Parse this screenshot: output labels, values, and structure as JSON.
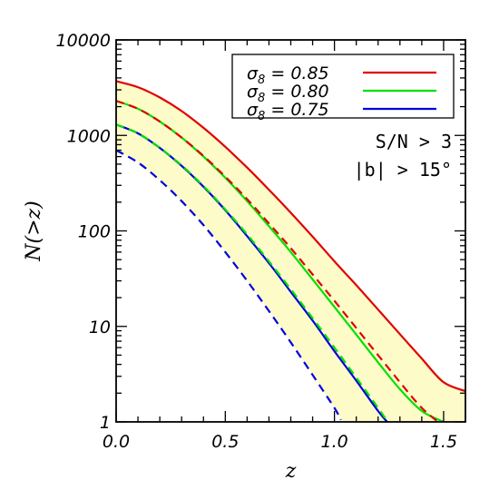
{
  "chart_data": {
    "type": "line",
    "xlabel": "z",
    "ylabel": "N(>z)",
    "xlim": [
      0.0,
      1.6
    ],
    "ylim": [
      1,
      10000
    ],
    "yscale": "log",
    "x_ticks": [
      "0.0",
      "0.5",
      "1.0",
      "1.5"
    ],
    "y_ticks": [
      "1",
      "10",
      "100",
      "1000",
      "10000"
    ],
    "legend_position": "top-right",
    "annotations": [
      "S/N > 3",
      "|b| > 15°"
    ],
    "series": [
      {
        "legend_symbol": "σ",
        "legend_subscript": "8",
        "legend_value": " = 0.85",
        "color": "#e00000",
        "style": "solid",
        "x": [
          0.0,
          0.1,
          0.2,
          0.3,
          0.4,
          0.5,
          0.6,
          0.7,
          0.8,
          0.9,
          1.0,
          1.1,
          1.2,
          1.3,
          1.4,
          1.5,
          1.6
        ],
        "y": [
          3700,
          3200,
          2500,
          1800,
          1200,
          760,
          460,
          270,
          155,
          87,
          48,
          27,
          15,
          8.3,
          4.6,
          2.6,
          2.1
        ]
      },
      {
        "legend_symbol": "σ",
        "legend_subscript": "8",
        "legend_value": " = 0.80",
        "color": "#00e000",
        "style": "solid",
        "x": [
          0.0,
          0.1,
          0.2,
          0.3,
          0.4,
          0.5,
          0.6,
          0.7,
          0.8,
          0.9,
          1.0,
          1.1,
          1.2,
          1.3,
          1.4,
          1.5,
          1.55
        ],
        "y": [
          2300,
          1900,
          1400,
          950,
          600,
          360,
          205,
          112,
          60,
          31,
          16,
          8.2,
          4.2,
          2.2,
          1.3,
          1.0,
          0.9
        ]
      },
      {
        "legend_symbol": "σ",
        "legend_subscript": "8",
        "legend_value": " = 0.75",
        "color": "#0000e0",
        "style": "solid",
        "x": [
          0.0,
          0.1,
          0.2,
          0.3,
          0.4,
          0.5,
          0.6,
          0.7,
          0.8,
          0.9,
          1.0,
          1.1,
          1.2,
          1.25
        ],
        "y": [
          1300,
          1050,
          740,
          480,
          290,
          165,
          88,
          46,
          23,
          11.5,
          5.5,
          2.7,
          1.3,
          0.95
        ]
      },
      {
        "color": "#e00000",
        "style": "dashed",
        "x": [
          0.0,
          0.1,
          0.2,
          0.3,
          0.4,
          0.5,
          0.6,
          0.7,
          0.8,
          0.9,
          1.0,
          1.1,
          1.2,
          1.3,
          1.4,
          1.5
        ],
        "y": [
          2300,
          1900,
          1400,
          950,
          610,
          370,
          215,
          120,
          66,
          35,
          18.5,
          9.6,
          5.0,
          2.6,
          1.4,
          0.9
        ]
      },
      {
        "color": "#00e000",
        "style": "dashed",
        "x": [
          0.0,
          0.1,
          0.2,
          0.3,
          0.4,
          0.5,
          0.6,
          0.7,
          0.8,
          0.9,
          1.0,
          1.1,
          1.2,
          1.25
        ],
        "y": [
          1300,
          1050,
          740,
          485,
          295,
          168,
          92,
          48,
          24.5,
          12.2,
          6.0,
          2.9,
          1.4,
          0.95
        ]
      },
      {
        "color": "#0000e0",
        "style": "dashed",
        "x": [
          0.0,
          0.1,
          0.2,
          0.3,
          0.4,
          0.5,
          0.6,
          0.7,
          0.8,
          0.9,
          1.0,
          1.03
        ],
        "y": [
          700,
          520,
          340,
          205,
          115,
          60,
          30,
          14.5,
          6.8,
          3.1,
          1.4,
          1.05
        ]
      }
    ],
    "band": {
      "color": "#fdfbc8",
      "upper_series": 0,
      "lower_series": 5
    }
  }
}
